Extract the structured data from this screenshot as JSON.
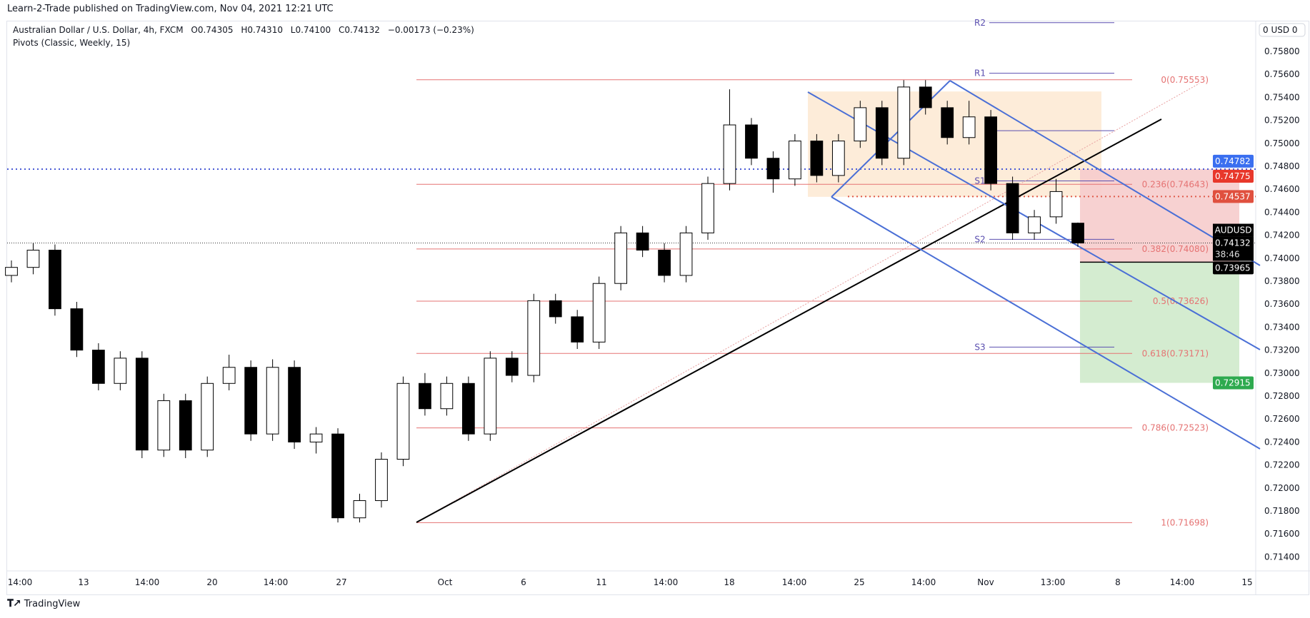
{
  "header": {
    "published": "Learn-2-Trade published on TradingView.com, Nov 04, 2021 12:21 UTC"
  },
  "legend": {
    "symbol": "Australian Dollar / U.S. Dollar, 4h, FXCM",
    "open": "O0.74305",
    "high": "H0.74310",
    "low": "L0.74100",
    "close": "C0.74132",
    "change": "−0.00173 (−0.23%)",
    "indicator": "Pivots (Classic, Weekly, 15)"
  },
  "price_axis": {
    "currency_label": "0 USD 0",
    "ticks": [
      "0.75800",
      "0.75600",
      "0.75400",
      "0.75200",
      "0.75000",
      "0.74800",
      "0.74600",
      "0.74400",
      "0.74200",
      "0.74000",
      "0.73800",
      "0.73600",
      "0.73400",
      "0.73200",
      "0.73000",
      "0.72800",
      "0.72600",
      "0.72400",
      "0.72200",
      "0.72000",
      "0.71800",
      "0.71600",
      "0.71400"
    ]
  },
  "time_axis": {
    "labels": [
      "14:00",
      "13",
      "14:00",
      "20",
      "14:00",
      "27",
      "Oct",
      "6",
      "11",
      "14:00",
      "18",
      "14:00",
      "25",
      "14:00",
      "Nov",
      "13:00",
      "8",
      "14:00",
      "15"
    ]
  },
  "footer": {
    "brand": "TradingView"
  },
  "colors": {
    "up": "#ffffff",
    "down": "#000000",
    "fib": "#e57373",
    "pivot": "#5b4fb0",
    "channel": "#4a6fd6",
    "trend": "#000000",
    "zone": "#fde9d2",
    "stop": "#f6cccc",
    "target": "#d4ecd0"
  },
  "chart_data": {
    "type": "candlestick",
    "symbol": "AUDUSD",
    "ylim": [
      0.7135,
      0.7605
    ],
    "candles": [
      [
        0.7385,
        0.7398,
        0.7379,
        0.7392
      ],
      [
        0.7392,
        0.7413,
        0.7386,
        0.7407
      ],
      [
        0.7407,
        0.7412,
        0.735,
        0.7356
      ],
      [
        0.7356,
        0.7362,
        0.7314,
        0.732
      ],
      [
        0.732,
        0.7326,
        0.7285,
        0.7291
      ],
      [
        0.7291,
        0.7319,
        0.7285,
        0.7313
      ],
      [
        0.7313,
        0.7319,
        0.7226,
        0.7233
      ],
      [
        0.7233,
        0.7282,
        0.7227,
        0.7276
      ],
      [
        0.7276,
        0.7282,
        0.7226,
        0.7233
      ],
      [
        0.7233,
        0.7297,
        0.7227,
        0.7291
      ],
      [
        0.7291,
        0.7316,
        0.7285,
        0.7305
      ],
      [
        0.7305,
        0.7311,
        0.7241,
        0.7247
      ],
      [
        0.7247,
        0.7312,
        0.7241,
        0.7305
      ],
      [
        0.7305,
        0.7311,
        0.7234,
        0.724
      ],
      [
        0.724,
        0.7253,
        0.723,
        0.7247
      ],
      [
        0.7247,
        0.7252,
        0.717,
        0.7174
      ],
      [
        0.7174,
        0.7195,
        0.717,
        0.7189
      ],
      [
        0.7189,
        0.7231,
        0.7183,
        0.7225
      ],
      [
        0.7225,
        0.7297,
        0.7219,
        0.7291
      ],
      [
        0.7291,
        0.73,
        0.7263,
        0.7269
      ],
      [
        0.7269,
        0.7297,
        0.7263,
        0.7291
      ],
      [
        0.7291,
        0.7297,
        0.7241,
        0.7247
      ],
      [
        0.7247,
        0.7319,
        0.7241,
        0.7313
      ],
      [
        0.7313,
        0.7319,
        0.7292,
        0.7298
      ],
      [
        0.7298,
        0.7369,
        0.7292,
        0.7363
      ],
      [
        0.7363,
        0.7369,
        0.7343,
        0.7349
      ],
      [
        0.7349,
        0.7355,
        0.7321,
        0.7327
      ],
      [
        0.7327,
        0.7384,
        0.7321,
        0.7378
      ],
      [
        0.7378,
        0.7428,
        0.7372,
        0.7422
      ],
      [
        0.7422,
        0.7428,
        0.7401,
        0.7407
      ],
      [
        0.7407,
        0.7413,
        0.7379,
        0.7385
      ],
      [
        0.7385,
        0.7428,
        0.7379,
        0.7422
      ],
      [
        0.7422,
        0.7471,
        0.7416,
        0.7465
      ],
      [
        0.7465,
        0.7547,
        0.7459,
        0.7516
      ],
      [
        0.7516,
        0.7522,
        0.7481,
        0.7487
      ],
      [
        0.7487,
        0.7493,
        0.7457,
        0.7469
      ],
      [
        0.7469,
        0.7508,
        0.7463,
        0.7502
      ],
      [
        0.7502,
        0.7508,
        0.7466,
        0.7472
      ],
      [
        0.7472,
        0.7508,
        0.7466,
        0.7502
      ],
      [
        0.7502,
        0.7537,
        0.7496,
        0.7531
      ],
      [
        0.7531,
        0.7537,
        0.7481,
        0.7487
      ],
      [
        0.7487,
        0.7555,
        0.7481,
        0.7549
      ],
      [
        0.7549,
        0.7555,
        0.7525,
        0.7531
      ],
      [
        0.7531,
        0.7537,
        0.7499,
        0.7505
      ],
      [
        0.7505,
        0.7537,
        0.7499,
        0.7523
      ],
      [
        0.7523,
        0.7529,
        0.7459,
        0.7465
      ],
      [
        0.7465,
        0.7471,
        0.7416,
        0.7422
      ],
      [
        0.7422,
        0.7442,
        0.7416,
        0.7436
      ],
      [
        0.7436,
        0.7469,
        0.743,
        0.7458
      ],
      [
        0.74305,
        0.7431,
        0.741,
        0.74132
      ]
    ],
    "fibonacci": [
      {
        "label": "0(0.75553)",
        "price": 0.75553
      },
      {
        "label": "0.236(0.74643)",
        "price": 0.74643
      },
      {
        "label": "0.382(0.74080)",
        "price": 0.7408
      },
      {
        "label": "0.5(0.73626)",
        "price": 0.73626
      },
      {
        "label": "0.618(0.73171)",
        "price": 0.73171
      },
      {
        "label": "0.786(0.72523)",
        "price": 0.72523
      },
      {
        "label": "1(0.71698)",
        "price": 0.71698
      }
    ],
    "pivots": [
      {
        "label": "R2",
        "price": 0.7605
      },
      {
        "label": "R1",
        "price": 0.7561
      },
      {
        "label": "",
        "price": 0.7511
      },
      {
        "label": "S1",
        "price": 0.74673
      },
      {
        "label": "S2",
        "price": 0.74164
      },
      {
        "label": "S3",
        "price": 0.73226
      }
    ],
    "zones": {
      "consolidation": [
        0.75451,
        0.74534
      ],
      "stop": [
        0.74775,
        0.73965
      ],
      "target": [
        0.73965,
        0.72915
      ]
    },
    "horizontal_lines": [
      {
        "price": 0.74775,
        "style": "dotted",
        "color": "#4a5bd6"
      },
      {
        "price": 0.74537,
        "style": "dotted",
        "color": "#e05b4b"
      },
      {
        "price": 0.74132,
        "style": "dotted",
        "color": "#333333"
      }
    ],
    "price_tags": [
      {
        "text": "0.74782",
        "price": 0.74782,
        "color": "#3a6ff0"
      },
      {
        "text": "0.74775",
        "price": 0.74775,
        "color": "#e8382b"
      },
      {
        "text": "0.74537",
        "price": 0.74537,
        "color": "#e0503f"
      },
      {
        "text": "0.74132",
        "sub": "38:46",
        "price": 0.74132,
        "color": "#000000",
        "name_tag": "AUDUSD"
      },
      {
        "text": "0.73965",
        "price": 0.73965,
        "color": "#000000"
      },
      {
        "text": "0.72915",
        "price": 0.72915,
        "color": "#2eaa4f"
      }
    ]
  }
}
